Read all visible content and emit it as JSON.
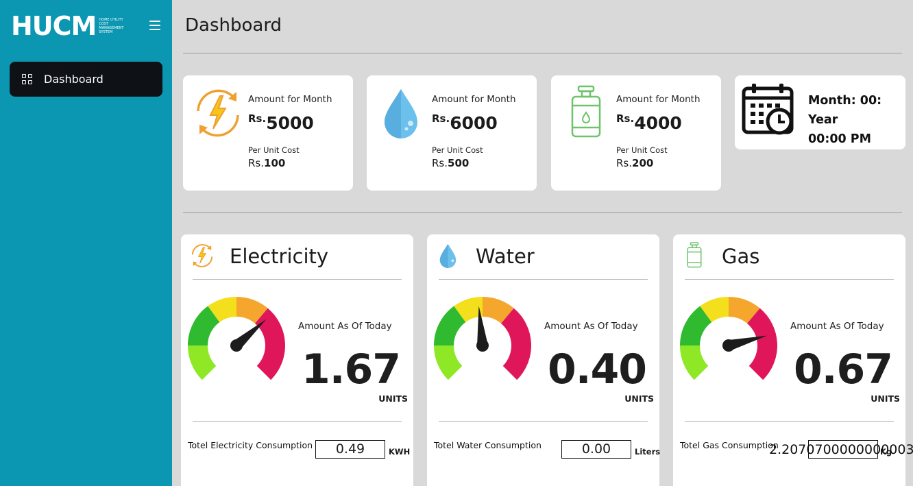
{
  "brand": {
    "logo": "HUCM",
    "tagline": "HOME UTILITY COST MANAGEMENT SYSTEM"
  },
  "sidebar": {
    "items": [
      {
        "label": "Dashboard",
        "icon": "grid-icon"
      }
    ]
  },
  "header": {
    "title": "Dashboard"
  },
  "summary": [
    {
      "key": "electricity",
      "amount_label": "Amount for Month",
      "currency": "Rs.",
      "amount": "5000",
      "unit_label": "Per Unit Cost",
      "unit_cost": "100",
      "icon": "electricity-icon",
      "color": "#f0a030"
    },
    {
      "key": "water",
      "amount_label": "Amount for Month",
      "currency": "Rs.",
      "amount": "6000",
      "unit_label": "Per Unit Cost",
      "unit_cost": "500",
      "icon": "water-drop-icon",
      "color": "#5db4e4"
    },
    {
      "key": "gas",
      "amount_label": "Amount for Month",
      "currency": "Rs.",
      "amount": "4000",
      "unit_label": "Per Unit Cost",
      "unit_cost": "200",
      "icon": "gas-cylinder-icon",
      "color": "#6cc36a"
    }
  ],
  "datetime": {
    "line1": "Month: 00:",
    "line2": "Year",
    "line3": "00:00 PM",
    "icon": "calendar-clock-icon"
  },
  "meters": [
    {
      "key": "electricity",
      "title": "Electricity",
      "today_label": "Amount As Of Today",
      "reading": "1.67",
      "units": "UNITS",
      "consumption_label": "Totel Electricity Consumption",
      "consumption_value": "0.49",
      "consumption_unit": "KWH",
      "needle_fraction": 0.68
    },
    {
      "key": "water",
      "title": "Water",
      "today_label": "Amount As Of Today",
      "reading": "0.40",
      "units": "UNITS",
      "consumption_label": "Totel Water Consumption",
      "consumption_value": "0.00",
      "consumption_unit": "Liters",
      "needle_fraction": 0.48
    },
    {
      "key": "gas",
      "title": "Gas",
      "today_label": "Amount As Of Today",
      "reading": "0.67",
      "units": "UNITS",
      "consumption_label": "Totel Gas Consumption",
      "consumption_value": "2.2070700000000003",
      "consumption_unit": "Kg",
      "needle_fraction": 0.78
    }
  ],
  "gauge_colors": [
    "#8ee826",
    "#2fba2f",
    "#f3df1b",
    "#f5a62d",
    "#e0165a"
  ]
}
